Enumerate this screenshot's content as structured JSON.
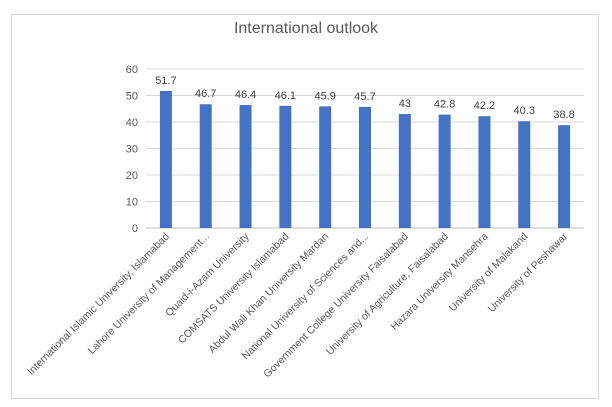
{
  "chart_data": {
    "type": "bar",
    "title": "International outlook",
    "xlabel": "",
    "ylabel": "",
    "ylim": [
      0,
      60
    ],
    "yticks": [
      0,
      10,
      20,
      30,
      40,
      50,
      60
    ],
    "grid": true,
    "bar_color": "#4472c4",
    "categories": [
      "International Islamic University, Islamabad",
      "Lahore University of Management...",
      "Quaid-i-Azam University",
      "COMSATS University Islamabad",
      "Abdul Wali Khan University Mardan",
      "National University of Sciences and...",
      "Government College University Faisalabad",
      "University of Agriculture, Faisalabad",
      "Hazara University Mansehra",
      "University of Malakand",
      "University of Peshawar"
    ],
    "values": [
      51.7,
      46.7,
      46.4,
      46.1,
      45.9,
      45.7,
      43,
      42.8,
      42.2,
      40.3,
      38.8
    ],
    "value_labels": [
      "51.7",
      "46.7",
      "46.4",
      "46.1",
      "45.9",
      "45.7",
      "43",
      "42.8",
      "42.2",
      "40.3",
      "38.8"
    ]
  }
}
